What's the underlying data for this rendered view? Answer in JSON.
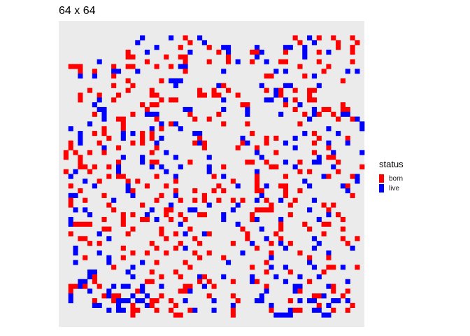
{
  "chart_data": {
    "type": "heatmap",
    "title": "64 x 64",
    "grid": false,
    "legend": {
      "title": "status",
      "position": "right",
      "entries": [
        {
          "label": "born",
          "color": "#ff0000"
        },
        {
          "label": "live",
          "color": "#0000ff"
        }
      ]
    },
    "background": "#ebebeb",
    "size": 64,
    "rows": [
      "................................................................",
      "................................................................",
      "................................................................",
      ".................B.....B..R..B...................R..B.R..R...R..",
      "................B..........R..B...................R..B....R...R.",
      "....................B....R.....R..BB.....B.....BB..B......R..R..",
      "..............R...B........B.....R.B....RRB....R...B..R.B....R..",
      "..............RR......R..RR........R.....B.........B............",
      "........B.........R.......R....R...R.B..R..B..RR......R......R..",
      "..RRR......R..RR....R..R.BB.......................R.....R.......",
      "....R..R...BB...B.........R.......B..........B.B.......R....B.B.",
      "....B..B...R...............................RR......R.B..........",
      "..............R......R.BBB.................................R....",
      "...........R...R........B........BR.......B....BB.....B........",
      "......R.......R....R.........R..R..R.......R.BR..R..RR..........",
      "....R...R...R......RR........RR.RR...R.......BR.....R...........",
      "....R...B..R.........R.RR.........B........BB..B.R..RR..........",
      ".......B.........R.RR.................RR.......R..B........R....",
      "........BB........R.......BB......B....B.........R...B.RR..RR...",
      ".......R.B.....R..BBB......R.....R.....B......B....R.BR..R.BB...",
      ".........B..RR......R.......R..R....................B.....R..RB.",
      "......B......R.......B.RB.........R....R..........R............B",
      "..B......R...R.....B.R...B..............................B......B",
      "....B..R.R...B.B.R.R........BB..........R..........B.R....B.....",
      "....B.....R..B...R.R.B.......R........B....R.R...B....R.....R...",
      "..R.B...R......R.R..B.......RBR.......RB...R...B.....R..B...B...",
      "..R......B..R.......R.........R......R...R.......B......R.......",
      ".R.R..R..R.........R..B..................B...R.......R...B.....B",
      ".R..R........B...B......B......B..........B...........B.RR......",
      "....R.......R....B.RR......R...........RR..R...B..R..BB...R.....",
      "....RR.R..R.B......B.B...B.....B..R.........RR...B.......B.....R",
      ".R.B..R.....B.........B........B.........B........R.R.....R.....",
      "..B.......R.RR......R...B.......R.B......R.....R.......BR....RB.",
      ".....B..R.....R.R.......R...........R....R.........B..........B.",
      "..R....B......B...R...R..........R...B...R.B..RR....B......BR...",
      "....R.........BR........R...R...R.R......RR....R..R.........B...",
      "..BB.....R.....B.....R..B.....R...........B....R.............R..",
      "..R..R.....B........R....R..R.R..R..R.R..B.R..B..R...B..........",
      "..R.......R......R.....B.......B.....B......R...R......R.R......",
      "...B.B.....R.......B..RR...BB.......B....RRRR.......B...R.......",
      "......B......R.R..B...R..R...RR...B.....R.......R.......B.R.....",
      "..B......R...R...RR.B..R..R.......B.....RB....B.......B....R....",
      "..BRRRR......R...........B...........B........R....R...RR.......",
      ".........RR....R.....R.....R..........R...B...R.....R......R....",
      "..R.....B.....R......R..R.B...BR.......R.....R.........R........",
      "....RR....B...........R.....R..........R...B..R......B.....R..R.",
      "......R.R..........R.....R...R......R...B...R.B.R.....B.....R...",
      "...B.........R......R...R.B..............R.....B.....B.......B..",
      "...B....B......R..R...R.....R..R......B.....R.....R.....B.......",
      ".....R....B..R...............R....R.........B.......R...R.......",
      "...B......B......B..R.....R........B.......R........B...........",
      "...........R...B...........R............R...B..B.....B..RR.B..R.",
      "......BB......B....R....R..................R....R......R.......",
      "......BR.......B.....R...R...BR...B.....B....B....B...B.........",
      "....BB.R..........RR.........R.R....R...BR.....B....R.......B...",
      "..RRBR..R..B.BB..B...B....RR..B.R..........R.....BB.....BR......",
      "..R...B...B.....RB.......RRB...............B.....BR......R..R...",
      "..B......RBRR..B..B..R.........R....R.....B..........RRB...R....",
      "..B....R...RBBB.BB.RR..R..B.....B....R...BB.....R.B.BB...BB.B...",
      ".......BB...B..R..BR....R...........B.......B.........R.B....R..",
      "..........B.BB.RR...R..R...RB...B...R.......R...BRR..BB..R..R...",
      "...............R........RR..........R........BBBB......BB.......",
      "................................................................",
      "................................................................"
    ]
  }
}
